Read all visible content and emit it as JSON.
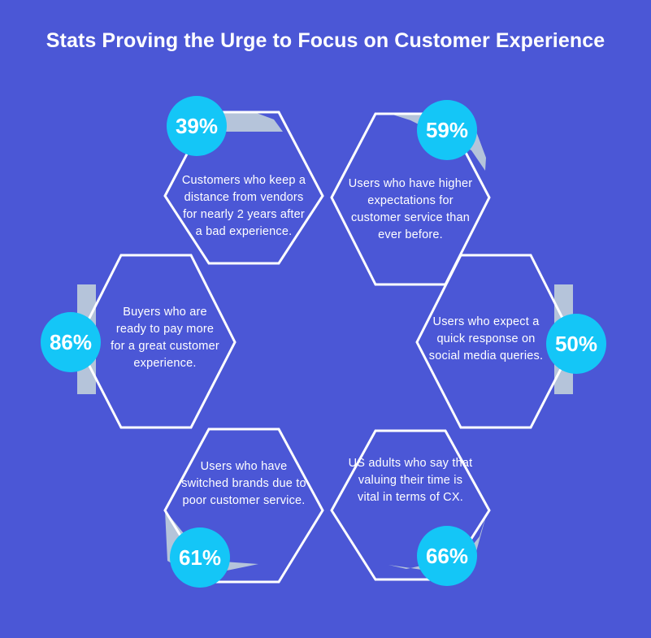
{
  "title": "Stats Proving the Urge to Focus on Customer Experience",
  "colors": {
    "background": "#4b57d6",
    "hex_outline": "#ffffff",
    "hex_accent": "#b5c4da",
    "badge": "#14c6f7",
    "text": "#ffffff"
  },
  "stats": [
    {
      "value": "39%",
      "text_lines": [
        "Customers who keep a",
        "distance from vendors",
        "for nearly 2 years after",
        "a bad experience."
      ]
    },
    {
      "value": "59%",
      "text_lines": [
        "Users who have higher",
        "expectations for",
        "customer service than",
        "ever before."
      ]
    },
    {
      "value": "86%",
      "text_lines": [
        "Buyers who are",
        "ready to pay more",
        "for a great customer",
        "experience."
      ]
    },
    {
      "value": "50%",
      "text_lines": [
        "Users who expect a",
        "quick response on",
        "social media queries."
      ]
    },
    {
      "value": "61%",
      "text_lines": [
        "Users who have",
        "switched brands due to",
        "poor customer service."
      ]
    },
    {
      "value": "66%",
      "text_lines": [
        "US adults who say that",
        "valuing their time is",
        "vital in terms of CX."
      ]
    }
  ]
}
